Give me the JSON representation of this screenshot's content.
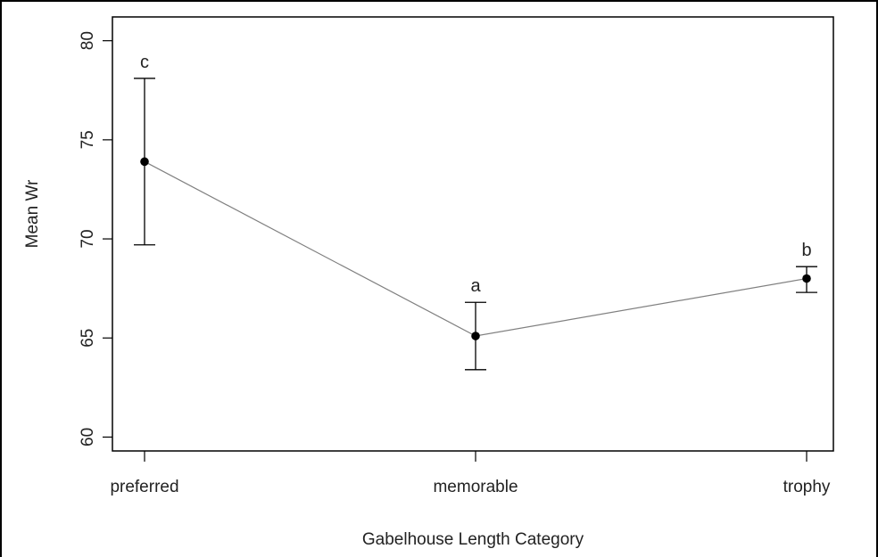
{
  "chart_data": {
    "type": "line",
    "title": "",
    "xlabel": "Gabelhouse Length Category",
    "ylabel": "Mean Wr",
    "categories": [
      "preferred",
      "memorable",
      "trophy"
    ],
    "series": [
      {
        "values": [
          73.9,
          65.1,
          68.0
        ],
        "lower": [
          69.7,
          63.4,
          67.3
        ],
        "upper": [
          78.1,
          66.8,
          68.6
        ],
        "significance_labels": [
          "c",
          "a",
          "b"
        ]
      }
    ],
    "ylim": [
      59.3,
      81.2
    ],
    "yticks": [
      60,
      65,
      70,
      75,
      80
    ],
    "grid": false,
    "legend": "none",
    "line_color": "#808080",
    "point_color": "#000000"
  }
}
